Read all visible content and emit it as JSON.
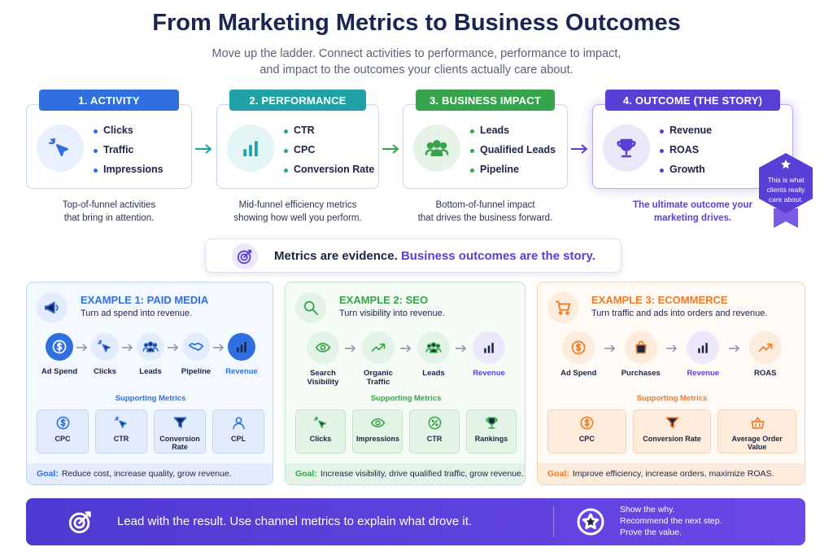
{
  "header": {
    "title": "From Marketing Metrics to Business Outcomes",
    "subtitle": [
      "Move up the ladder. Connect activities to performance, performance to impact,",
      "and impact to the outcomes your clients actually care about."
    ]
  },
  "stages": [
    {
      "label": "1. ACTIVITY",
      "items": [
        "Clicks",
        "Traffic",
        "Impressions"
      ],
      "caption": [
        "Top-of-funnel activities",
        "that bring in attention."
      ]
    },
    {
      "label": "2. PERFORMANCE",
      "items": [
        "CTR",
        "CPC",
        "Conversion Rate"
      ],
      "caption": [
        "Mid-funnel efficiency metrics",
        "showing how well you perform."
      ]
    },
    {
      "label": "3. BUSINESS IMPACT",
      "items": [
        "Leads",
        "Qualified Leads",
        "Pipeline"
      ],
      "caption": [
        "Bottom-of-funnel impact",
        "that drives the business forward."
      ]
    },
    {
      "label": "4. OUTCOME (THE STORY)",
      "items": [
        "Revenue",
        "ROAS",
        "Growth"
      ],
      "caption": [
        "The ultimate outcome your",
        "marketing drives."
      ]
    }
  ],
  "badge": [
    "This is what",
    "clients really",
    "care about."
  ],
  "banner": {
    "lead": "Metrics are evidence.",
    "highlight": "Business outcomes are the story."
  },
  "examples": [
    {
      "title": "EXAMPLE 1: PAID MEDIA",
      "subtitle": "Turn ad spend into revenue.",
      "flow": [
        "Ad Spend",
        "Clicks",
        "Leads",
        "Pipeline",
        "Revenue"
      ],
      "supporting_title": "Supporting Metrics",
      "metrics": [
        "CPC",
        "CTR",
        "Conversion Rate",
        "CPL"
      ],
      "goal_label": "Goal:",
      "goal": "Reduce cost, increase quality, grow revenue."
    },
    {
      "title": "EXAMPLE 2: SEO",
      "subtitle": "Turn visibility into revenue.",
      "flow": [
        "Search Visibility",
        "Organic Traffic",
        "Leads",
        "Revenue"
      ],
      "supporting_title": "Supporting Metrics",
      "metrics": [
        "Clicks",
        "Impressions",
        "CTR",
        "Rankings"
      ],
      "goal_label": "Goal:",
      "goal": "Increase visibility, drive qualified traffic, grow revenue."
    },
    {
      "title": "EXAMPLE 3: ECOMMERCE",
      "subtitle": "Turn traffic and ads into orders and revenue.",
      "flow": [
        "Ad Spend",
        "Purchases",
        "Revenue",
        "ROAS"
      ],
      "supporting_title": "Supporting Metrics",
      "metrics": [
        "CPC",
        "Conversion Rate",
        "Average Order Value"
      ],
      "goal_label": "Goal:",
      "goal": "Improve efficiency, increase orders, maximize ROAS."
    }
  ],
  "footer": {
    "lead": "Lead with the result. Use channel metrics to explain what drove it.",
    "points": [
      "Show the why.",
      "Recommend the next step.",
      "Prove the value."
    ]
  }
}
